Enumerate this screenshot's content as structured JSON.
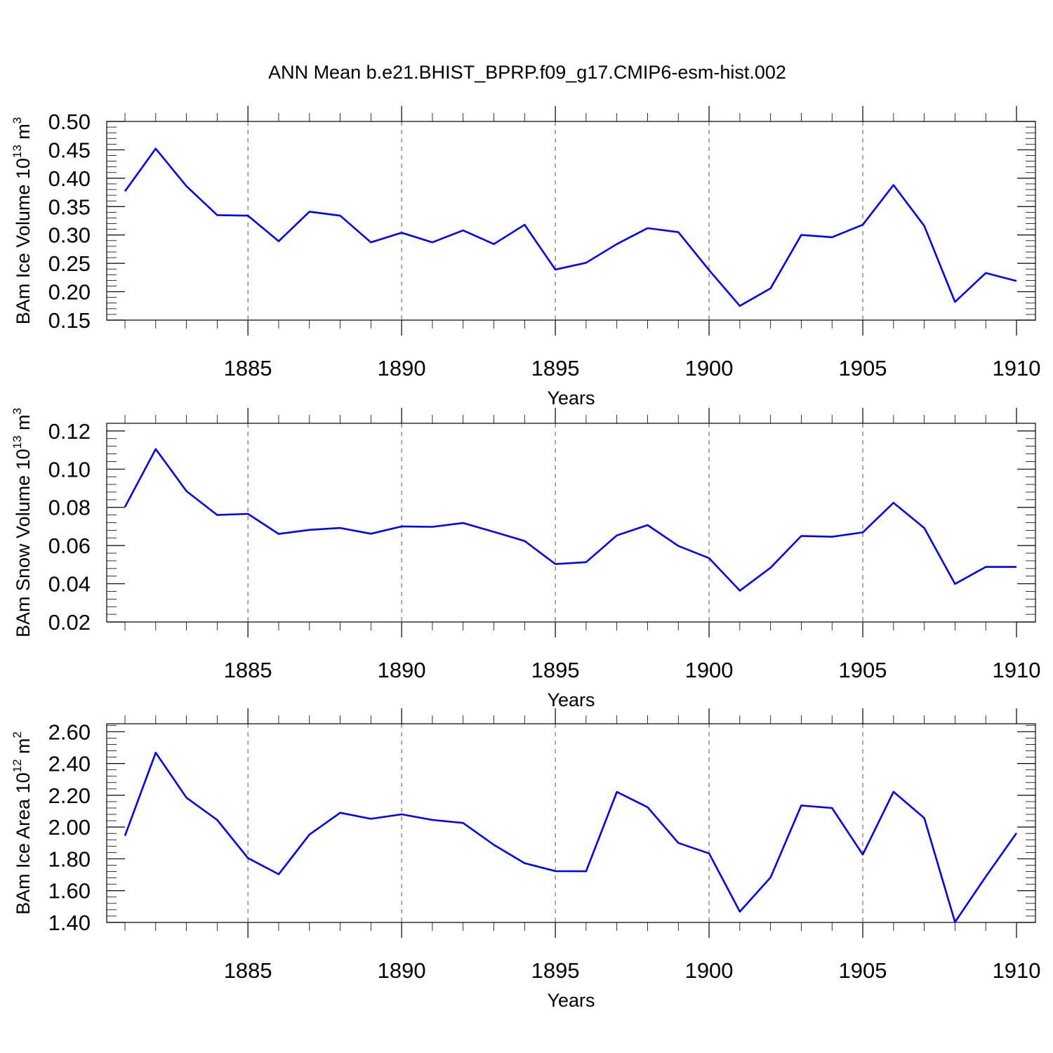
{
  "title": "ANN Mean b.e21.BHIST_BPRP.f09_g17.CMIP6-esm-hist.002",
  "colors": {
    "line": "#0000ff",
    "axis": "#000000",
    "grid": "#555555"
  },
  "chart_data": [
    {
      "type": "line",
      "title": "",
      "xlabel": "Years",
      "ylabel": {
        "text": "BAm Ice Volume 10",
        "sup": "13",
        "unit": " m",
        "unit_sup": "3"
      },
      "xlim": [
        1881,
        1910
      ],
      "ylim": [
        0.15,
        0.5
      ],
      "xticks": [
        1885,
        1890,
        1895,
        1900,
        1905,
        1910
      ],
      "yticks": [
        "0.15",
        "0.20",
        "0.25",
        "0.30",
        "0.35",
        "0.40",
        "0.45",
        "0.50"
      ],
      "grid": "vertical dashed at major x ticks",
      "x": [
        1881,
        1882,
        1883,
        1884,
        1885,
        1886,
        1887,
        1888,
        1889,
        1890,
        1891,
        1892,
        1893,
        1894,
        1895,
        1896,
        1897,
        1898,
        1899,
        1900,
        1901,
        1902,
        1903,
        1904,
        1905,
        1906,
        1907,
        1908,
        1909,
        1910
      ],
      "series": [
        {
          "values": [
            0.377,
            0.452,
            0.386,
            0.335,
            0.334,
            0.289,
            0.341,
            0.334,
            0.287,
            0.304,
            0.287,
            0.308,
            0.284,
            0.318,
            0.239,
            0.251,
            0.284,
            0.312,
            0.305,
            0.238,
            0.175,
            0.206,
            0.3,
            0.296,
            0.318,
            0.388,
            0.316,
            0.182,
            0.233,
            0.219
          ]
        }
      ]
    },
    {
      "type": "line",
      "title": "",
      "xlabel": "Years",
      "ylabel": {
        "text": "BAm Snow Volume 10",
        "sup": "13",
        "unit": " m",
        "unit_sup": "3"
      },
      "xlim": [
        1881,
        1910
      ],
      "ylim": [
        0.02,
        0.124
      ],
      "xticks": [
        1885,
        1890,
        1895,
        1900,
        1905,
        1910
      ],
      "yticks": [
        "0.02",
        "0.04",
        "0.06",
        "0.08",
        "0.10",
        "0.12"
      ],
      "grid": "vertical dashed at major x ticks",
      "x": [
        1881,
        1882,
        1883,
        1884,
        1885,
        1886,
        1887,
        1888,
        1889,
        1890,
        1891,
        1892,
        1893,
        1894,
        1895,
        1896,
        1897,
        1898,
        1899,
        1900,
        1901,
        1902,
        1903,
        1904,
        1905,
        1906,
        1907,
        1908,
        1909,
        1910
      ],
      "series": [
        {
          "values": [
            0.0802,
            0.1105,
            0.0885,
            0.076,
            0.0766,
            0.0661,
            0.0682,
            0.0692,
            0.0662,
            0.07,
            0.0698,
            0.0718,
            0.0672,
            0.0624,
            0.0503,
            0.0513,
            0.0653,
            0.0707,
            0.0598,
            0.0534,
            0.0364,
            0.0484,
            0.065,
            0.0646,
            0.0669,
            0.0824,
            0.0692,
            0.0399,
            0.0488,
            0.0488
          ]
        }
      ]
    },
    {
      "type": "line",
      "title": "",
      "xlabel": "Years",
      "ylabel": {
        "text": "BAm Ice Area 10",
        "sup": "12",
        "unit": " m",
        "unit_sup": "2"
      },
      "xlim": [
        1881,
        1910
      ],
      "ylim": [
        1.4,
        2.65
      ],
      "xticks": [
        1885,
        1890,
        1895,
        1900,
        1905,
        1910
      ],
      "yticks": [
        "1.40",
        "1.60",
        "1.80",
        "2.00",
        "2.20",
        "2.40",
        "2.60"
      ],
      "grid": "vertical dashed at major x ticks",
      "x": [
        1881,
        1882,
        1883,
        1884,
        1885,
        1886,
        1887,
        1888,
        1889,
        1890,
        1891,
        1892,
        1893,
        1894,
        1895,
        1896,
        1897,
        1898,
        1899,
        1900,
        1901,
        1902,
        1903,
        1904,
        1905,
        1906,
        1907,
        1908,
        1909,
        1910
      ],
      "series": [
        {
          "values": [
            1.945,
            2.468,
            2.185,
            2.045,
            1.805,
            1.703,
            1.953,
            2.09,
            2.052,
            2.08,
            2.045,
            2.026,
            1.888,
            1.773,
            1.723,
            1.722,
            2.221,
            2.125,
            1.9,
            1.834,
            1.468,
            1.683,
            2.136,
            2.12,
            1.827,
            2.222,
            2.057,
            1.402,
            1.688,
            1.962
          ]
        }
      ]
    }
  ]
}
